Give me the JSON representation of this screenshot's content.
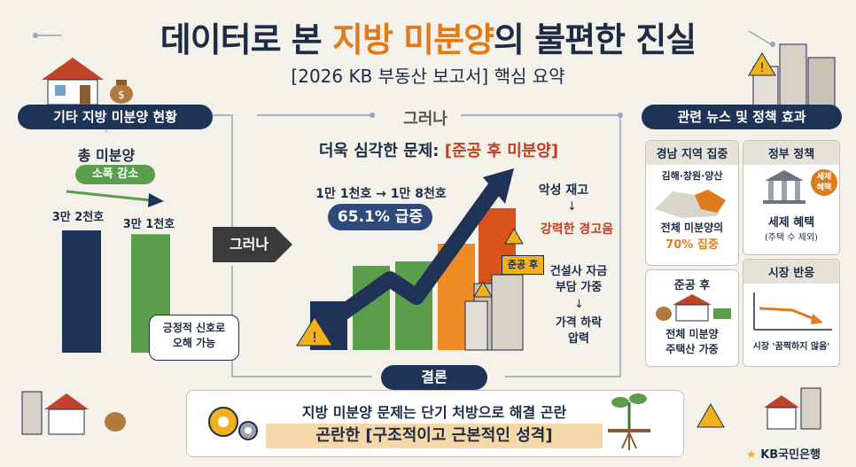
{
  "header": {
    "title_part1": "데이터로 본 ",
    "title_highlight": "지방 미분양",
    "title_part2": "의 불편한 진실",
    "subtitle": "[2026 KB 부동산 보고서] 핵심 요약"
  },
  "left": {
    "section_title": "기타 지방 미분양 현황",
    "total_label": "총 미분양",
    "decrease_badge": "소폭 감소",
    "bar1_label": "3만 2천호",
    "bar2_label": "3만 1천호",
    "speech": "긍정적 신호로\n오해 가능"
  },
  "middle": {
    "however_top": "그러나",
    "however_arrow": "그러나",
    "headline_prefix": "더욱 심각한 문제: ",
    "headline_highlight": "[준공 후 미분양]",
    "change_text": "1만 1천호 → 1만 8천호",
    "surge_badge": "65.1% 급증",
    "after_completion_tag": "준공 후",
    "bad_inventory": "악성 재고",
    "strong_warning": "강력한 경고음",
    "builder_burden": "건설사 자금\n부담 가중",
    "price_pressure": "가격 하락\n압력"
  },
  "right": {
    "section_title": "관련 뉴스 및 정책 효과",
    "gyeongnam": {
      "head": "경남 지역 집중",
      "cities": "김해·창원·양산",
      "share_line": "전체 미분양의",
      "share_value": "70% 집중"
    },
    "completed": {
      "head": "준공 후",
      "line1": "전체 미분양",
      "line2": "주택산 가중"
    },
    "gov": {
      "head": "정부 정책",
      "badge": "세제\n혜택",
      "line1": "세제 혜택",
      "line2": "(주택 수 제외)"
    },
    "market": {
      "head": "시장 반응",
      "caption": "시장 '꿈쩍하지 않음'"
    }
  },
  "conclusion": {
    "tag": "결론",
    "line1": "지방 미분양 문제는 단기 처방으로 해결 곤란",
    "line2": "곤란한 [구조적이고 근본적인 성격]"
  },
  "footer": {
    "logo_text": "KB국민은행"
  },
  "chart_data": {
    "type": "bar",
    "categories": [
      "3만 2천호",
      "3만 1천호"
    ],
    "values": [
      32000,
      31000
    ],
    "title": "",
    "xlabel": "",
    "ylabel": ""
  },
  "colors": {
    "navy": "#1f3357",
    "green": "#5a9e4b",
    "orange": "#e07b1c",
    "red": "#c83a1e",
    "cream": "#f4f1ea"
  }
}
